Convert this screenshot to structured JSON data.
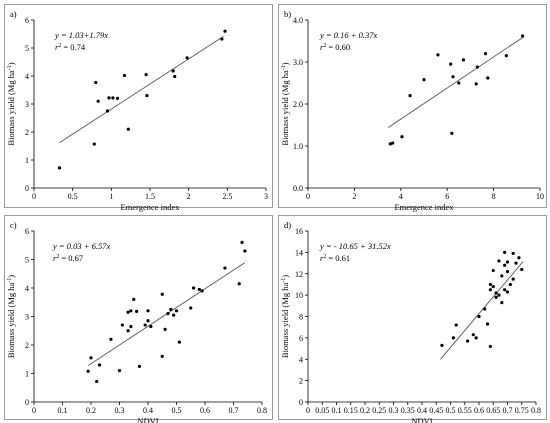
{
  "chart_data": [
    {
      "type": "scatter",
      "panel_label": "a)",
      "xlabel": "Emergence index",
      "ylabel": "Biomass yield (Mg ha",
      "ylabel_sup": "-1",
      "ylabel_end": ")",
      "equation": "y = 1.03+1.79x",
      "r2_label": "r",
      "r2_sup": "2",
      "r2_value": "= 0.74",
      "xlim": [
        0,
        3
      ],
      "ylim": [
        0,
        6
      ],
      "xticks": [
        0,
        0.5,
        1,
        1.5,
        2,
        2.5,
        3
      ],
      "xtick_labels": [
        "0",
        "0.5",
        "1",
        "1.5",
        "2",
        "2.5",
        "3"
      ],
      "yticks": [
        0,
        1,
        2,
        3,
        4,
        5,
        6
      ],
      "ytick_labels": [
        "0",
        "1",
        "2",
        "3",
        "4",
        "5",
        "6"
      ],
      "trendline": {
        "intercept": 1.03,
        "slope": 1.79,
        "x_range": [
          0.33,
          2.45
        ]
      },
      "points": [
        [
          0.33,
          0.72
        ],
        [
          0.78,
          1.57
        ],
        [
          0.8,
          3.77
        ],
        [
          0.83,
          3.1
        ],
        [
          0.95,
          2.75
        ],
        [
          0.97,
          3.22
        ],
        [
          1.02,
          3.22
        ],
        [
          1.08,
          3.2
        ],
        [
          1.17,
          4.02
        ],
        [
          1.22,
          2.1
        ],
        [
          1.45,
          4.05
        ],
        [
          1.46,
          3.3
        ],
        [
          1.8,
          4.18
        ],
        [
          1.82,
          3.98
        ],
        [
          1.98,
          4.65
        ],
        [
          2.43,
          5.32
        ],
        [
          2.47,
          5.6
        ]
      ]
    },
    {
      "type": "scatter",
      "panel_label": "b)",
      "xlabel": "Emergence index",
      "ylabel": "Biomass yield (Mg ha",
      "ylabel_sup": "-1",
      "ylabel_end": ")",
      "equation": "y = 0.16 + 0.37x",
      "r2_label": "r",
      "r2_sup": "2",
      "r2_value": "= 0.60",
      "xlim": [
        0,
        10
      ],
      "ylim": [
        0.0,
        4.0
      ],
      "xticks": [
        0,
        2,
        4,
        6,
        8,
        10
      ],
      "xtick_labels": [
        "0",
        "2",
        "4",
        "6",
        "8",
        "10"
      ],
      "yticks": [
        0,
        1,
        2,
        3,
        4
      ],
      "ytick_labels": [
        "0.0",
        "1.0",
        "2.0",
        "3.0",
        "4.0"
      ],
      "trendline": {
        "intercept": 0.16,
        "slope": 0.37,
        "x_range": [
          3.45,
          9.28
        ]
      },
      "points": [
        [
          3.55,
          1.05
        ],
        [
          3.65,
          1.07
        ],
        [
          4.05,
          1.22
        ],
        [
          4.4,
          2.2
        ],
        [
          5.0,
          2.58
        ],
        [
          5.6,
          3.17
        ],
        [
          6.15,
          2.95
        ],
        [
          6.2,
          1.3
        ],
        [
          6.25,
          2.65
        ],
        [
          6.5,
          2.5
        ],
        [
          6.7,
          3.05
        ],
        [
          7.25,
          2.48
        ],
        [
          7.3,
          2.88
        ],
        [
          7.65,
          3.2
        ],
        [
          7.75,
          2.62
        ],
        [
          8.55,
          3.15
        ],
        [
          9.25,
          3.62
        ]
      ]
    },
    {
      "type": "scatter",
      "panel_label": "c)",
      "xlabel": "NDVI",
      "ylabel": "Biomass yield (Mg ha",
      "ylabel_sup": "-1",
      "ylabel_end": ")",
      "equation": "y = 0.03 + 6.57x",
      "r2_label": "r",
      "r2_sup": "2",
      "r2_value": "= 0.67",
      "xlim": [
        0,
        0.8
      ],
      "ylim": [
        0,
        6
      ],
      "xticks": [
        0,
        0.1,
        0.2,
        0.3,
        0.4,
        0.5,
        0.6,
        0.7,
        0.8
      ],
      "xtick_labels": [
        "0",
        "0.1",
        "0.2",
        "0.3",
        "0.4",
        "0.5",
        "0.6",
        "0.7",
        "0.8"
      ],
      "yticks": [
        0,
        1,
        2,
        3,
        4,
        5,
        6
      ],
      "ytick_labels": [
        "0",
        "1",
        "2",
        "3",
        "4",
        "5",
        "6"
      ],
      "trendline": {
        "intercept": 0.03,
        "slope": 6.57,
        "x_range": [
          0.19,
          0.74
        ]
      },
      "points": [
        [
          0.19,
          1.08
        ],
        [
          0.2,
          1.55
        ],
        [
          0.22,
          0.72
        ],
        [
          0.23,
          1.3
        ],
        [
          0.27,
          2.2
        ],
        [
          0.3,
          1.1
        ],
        [
          0.31,
          2.7
        ],
        [
          0.33,
          2.5
        ],
        [
          0.33,
          3.15
        ],
        [
          0.34,
          2.65
        ],
        [
          0.34,
          3.2
        ],
        [
          0.35,
          3.6
        ],
        [
          0.36,
          3.18
        ],
        [
          0.37,
          1.25
        ],
        [
          0.39,
          2.7
        ],
        [
          0.4,
          2.85
        ],
        [
          0.4,
          3.2
        ],
        [
          0.41,
          2.65
        ],
        [
          0.45,
          1.6
        ],
        [
          0.45,
          3.78
        ],
        [
          0.46,
          2.55
        ],
        [
          0.47,
          3.1
        ],
        [
          0.48,
          3.25
        ],
        [
          0.49,
          3.05
        ],
        [
          0.5,
          3.2
        ],
        [
          0.51,
          2.1
        ],
        [
          0.55,
          3.3
        ],
        [
          0.56,
          4.0
        ],
        [
          0.58,
          3.95
        ],
        [
          0.59,
          3.9
        ],
        [
          0.67,
          4.7
        ],
        [
          0.72,
          4.15
        ],
        [
          0.73,
          5.6
        ],
        [
          0.74,
          5.3
        ]
      ]
    },
    {
      "type": "scatter",
      "panel_label": "d)",
      "xlabel": "NDVI",
      "ylabel": "Biomass yield (Mg ha",
      "ylabel_sup": "-1",
      "ylabel_end": ")",
      "equation": "y = - 10.65 + 31.52x",
      "r2_label": "r",
      "r2_sup": "2",
      "r2_value": "= 0.61",
      "xlim": [
        0,
        0.8
      ],
      "ylim": [
        0,
        16
      ],
      "xticks": [
        0,
        0.05,
        0.1,
        0.15,
        0.2,
        0.25,
        0.3,
        0.35,
        0.4,
        0.45,
        0.5,
        0.55,
        0.6,
        0.65,
        0.7,
        0.75,
        0.8
      ],
      "xtick_labels": [
        "0",
        "0.05",
        "0.1",
        "0.15",
        "0.2",
        "0.25",
        "0.3",
        "0.35",
        "0.4",
        "0.45",
        "0.5",
        "0.55",
        "0.6",
        "0.65",
        "0.7",
        "0.75",
        "0.8"
      ],
      "yticks": [
        0,
        2,
        4,
        6,
        8,
        10,
        12,
        14,
        16
      ],
      "ytick_labels": [
        "0",
        "2",
        "4",
        "6",
        "8",
        "10",
        "12",
        "14",
        "16"
      ],
      "trendline": {
        "intercept": -10.65,
        "slope": 31.52,
        "x_range": [
          0.465,
          0.755
        ]
      },
      "points": [
        [
          0.47,
          5.3
        ],
        [
          0.51,
          6.0
        ],
        [
          0.52,
          7.2
        ],
        [
          0.56,
          5.7
        ],
        [
          0.58,
          6.3
        ],
        [
          0.59,
          6.0
        ],
        [
          0.6,
          8.0
        ],
        [
          0.62,
          8.7
        ],
        [
          0.63,
          7.3
        ],
        [
          0.64,
          5.2
        ],
        [
          0.64,
          10.5
        ],
        [
          0.64,
          11.0
        ],
        [
          0.65,
          10.8
        ],
        [
          0.65,
          12.3
        ],
        [
          0.66,
          9.8
        ],
        [
          0.66,
          10.2
        ],
        [
          0.67,
          10.0
        ],
        [
          0.67,
          13.2
        ],
        [
          0.68,
          9.3
        ],
        [
          0.68,
          11.8
        ],
        [
          0.69,
          10.5
        ],
        [
          0.69,
          12.8
        ],
        [
          0.69,
          14.0
        ],
        [
          0.7,
          10.3
        ],
        [
          0.7,
          12.2
        ],
        [
          0.7,
          13.1
        ],
        [
          0.71,
          11.0
        ],
        [
          0.72,
          11.5
        ],
        [
          0.72,
          13.9
        ],
        [
          0.73,
          13.0
        ],
        [
          0.74,
          13.5
        ],
        [
          0.75,
          12.4
        ]
      ]
    }
  ]
}
